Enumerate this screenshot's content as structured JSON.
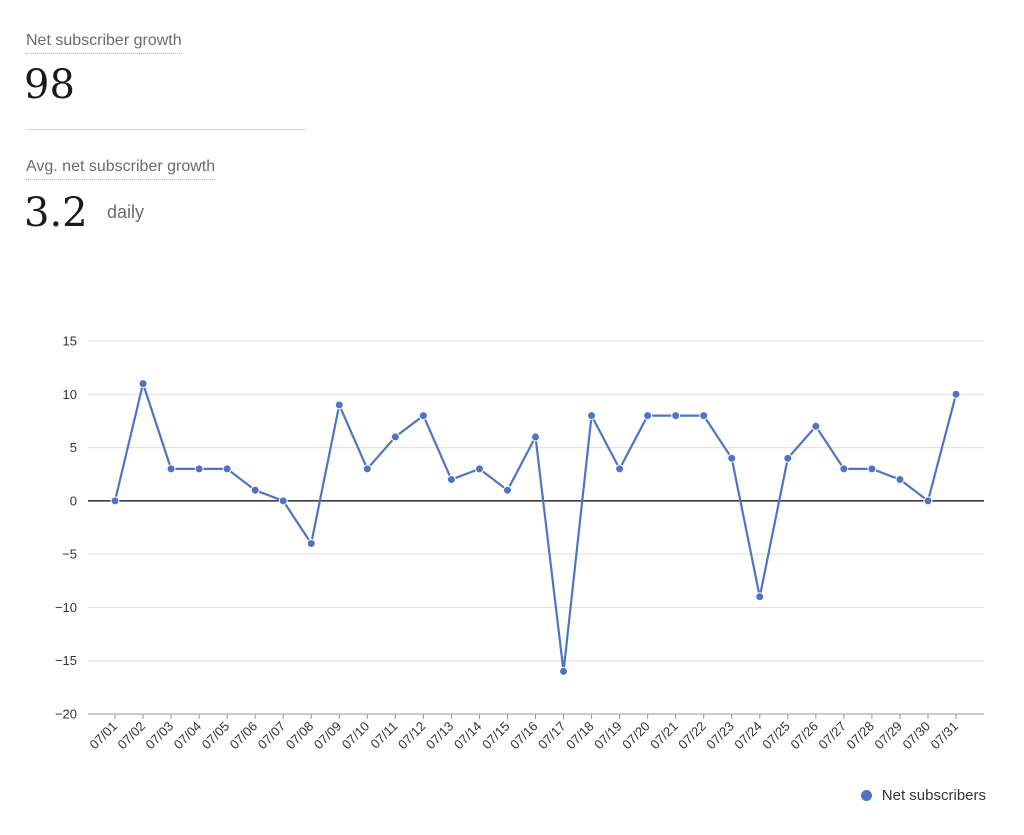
{
  "stats": {
    "net_label": "Net subscriber growth",
    "net_value": "98",
    "avg_label": "Avg. net subscriber growth",
    "avg_value": "3.2",
    "avg_unit": "daily"
  },
  "colors": {
    "series": "#4f74c7",
    "grid": "#dedede",
    "zero_line": "#000000"
  },
  "chart_data": {
    "type": "line",
    "title": "",
    "xlabel": "",
    "ylabel": "",
    "ylim": [
      -20,
      15
    ],
    "yticks": [
      15,
      10,
      5,
      0,
      -5,
      -10,
      -15,
      -20
    ],
    "grid": true,
    "legend_position": "bottom-right",
    "categories": [
      "07/01",
      "07/02",
      "07/03",
      "07/04",
      "07/05",
      "07/06",
      "07/07",
      "07/08",
      "07/09",
      "07/10",
      "07/11",
      "07/12",
      "07/13",
      "07/14",
      "07/15",
      "07/16",
      "07/17",
      "07/18",
      "07/19",
      "07/20",
      "07/21",
      "07/22",
      "07/23",
      "07/24",
      "07/25",
      "07/26",
      "07/27",
      "07/28",
      "07/29",
      "07/30",
      "07/31"
    ],
    "series": [
      {
        "name": "Net subscribers",
        "values": [
          0,
          11,
          3,
          3,
          3,
          1,
          0,
          -4,
          9,
          3,
          6,
          8,
          2,
          3,
          1,
          6,
          -16,
          8,
          3,
          8,
          8,
          8,
          4,
          -9,
          4,
          7,
          3,
          3,
          2,
          0,
          10
        ]
      }
    ]
  }
}
